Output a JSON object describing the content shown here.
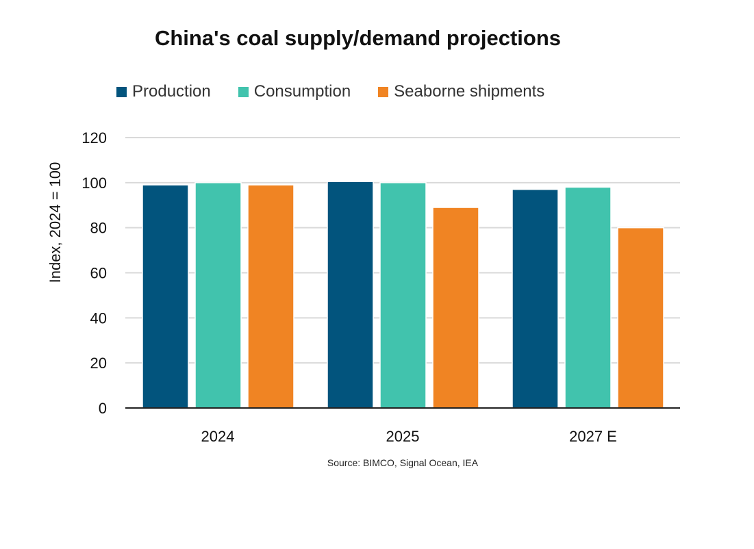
{
  "chart_data": {
    "type": "bar",
    "title": "China's coal supply/demand projections",
    "ylabel": "Index, 2024 = 100",
    "xlabel": "",
    "categories": [
      "2024",
      "2025",
      "2027 E"
    ],
    "series": [
      {
        "name": "Production",
        "color": "#02547d",
        "values": [
          99,
          100.5,
          97
        ]
      },
      {
        "name": "Consumption",
        "color": "#41c3ad",
        "values": [
          100,
          100,
          98
        ]
      },
      {
        "name": "Seaborne shipments",
        "color": "#f08423",
        "values": [
          99,
          89,
          80
        ]
      }
    ],
    "ylim": [
      0,
      120
    ],
    "yticks": [
      "0",
      "20",
      "40",
      "60",
      "80",
      "100",
      "120"
    ],
    "grid": true,
    "legend_position": "top",
    "source": "Source: BIMCO, Signal Ocean, IEA"
  }
}
